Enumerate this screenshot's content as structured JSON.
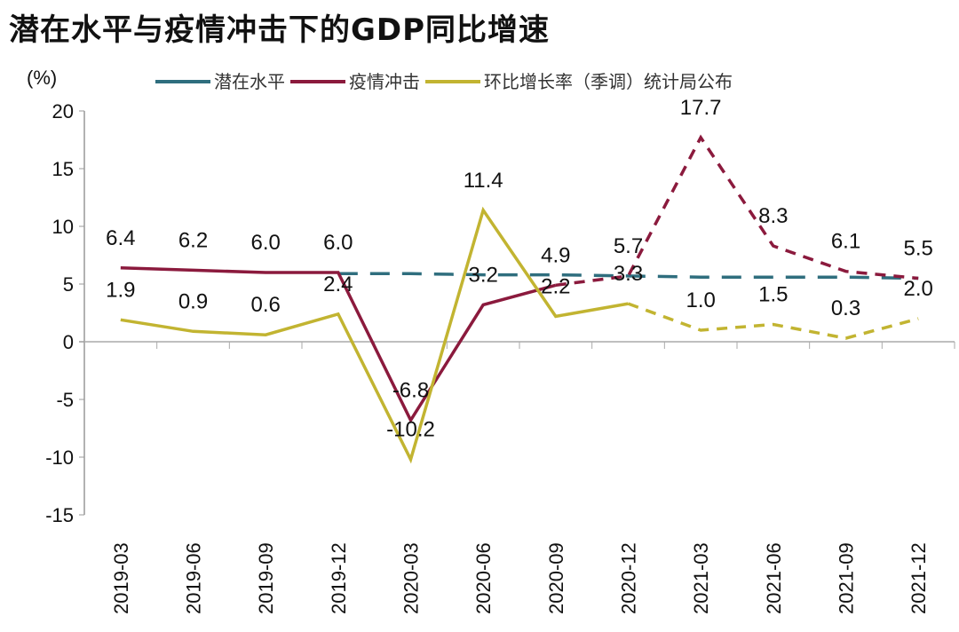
{
  "chart_data": {
    "type": "line",
    "title": "潜在水平与疫情冲击下的GDP同比增速",
    "ylabel": "(%)",
    "xlabel": "",
    "ylim": [
      -15,
      20
    ],
    "yticks": [
      20,
      15,
      10,
      5,
      0,
      -5,
      -10,
      -15
    ],
    "categories": [
      "2019-03",
      "2019-06",
      "2019-09",
      "2019-12",
      "2020-03",
      "2020-06",
      "2020-09",
      "2020-12",
      "2021-03",
      "2021-06",
      "2021-09",
      "2021-12"
    ],
    "legend_position": "top",
    "series": [
      {
        "name": "潜在水平",
        "color": "#2f6e7e",
        "style": "dashed",
        "values": [
          null,
          null,
          null,
          5.9,
          5.9,
          5.8,
          5.8,
          5.7,
          5.6,
          5.6,
          5.6,
          5.5
        ],
        "labels": false
      },
      {
        "name": "疫情冲击",
        "color": "#8b1a3d",
        "solid_until_index": 6,
        "values": [
          6.4,
          6.2,
          6.0,
          6.0,
          -6.8,
          3.2,
          4.9,
          5.7,
          17.7,
          8.3,
          6.1,
          5.5
        ],
        "labels": true
      },
      {
        "name": "环比增长率（季调）统计局公布",
        "color": "#c2b431",
        "solid_until_index": 7,
        "values": [
          1.9,
          0.9,
          0.6,
          2.4,
          -10.2,
          11.4,
          2.2,
          3.3,
          1.0,
          1.5,
          0.3,
          2.0
        ],
        "labels": true
      }
    ]
  }
}
